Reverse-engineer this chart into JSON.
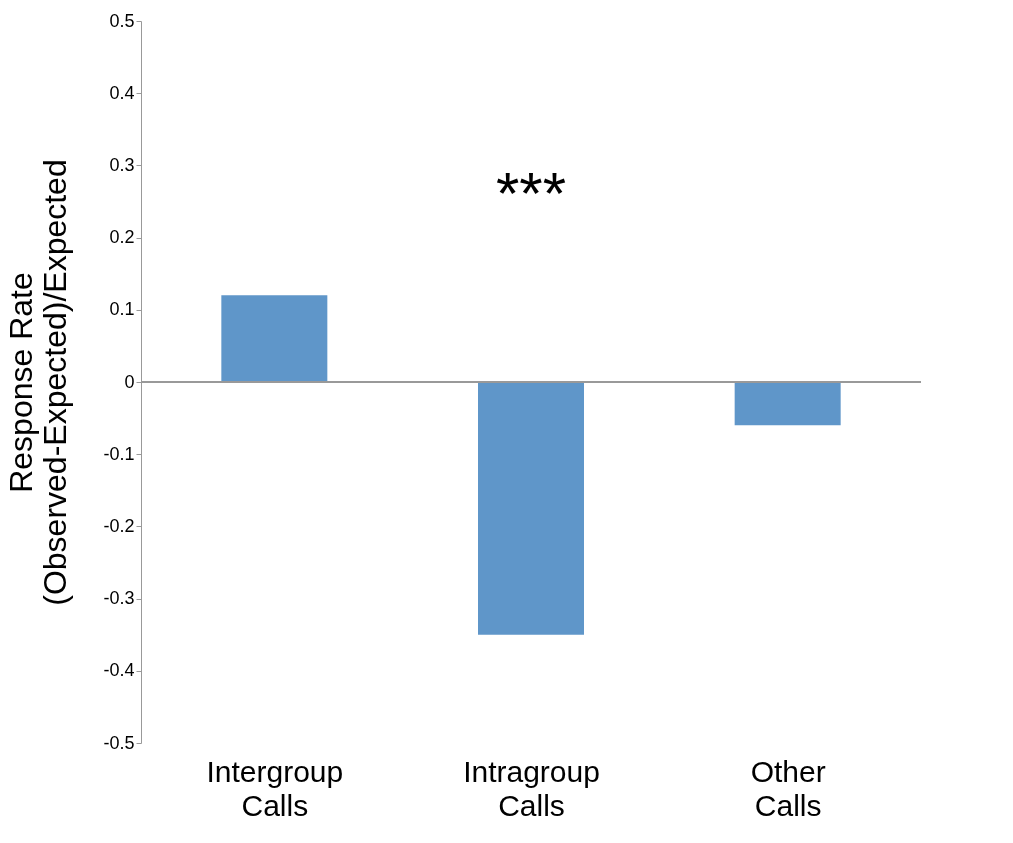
{
  "chart_data": {
    "type": "bar",
    "categories": [
      "Intergroup Calls",
      "Intragroup Calls",
      "Other Calls"
    ],
    "series": [
      {
        "color": "#5f96c9",
        "values": [
          0.12,
          -0.35,
          -0.06
        ]
      }
    ],
    "ylabel": "Response Rate\n(Observed-Expected)/Expected",
    "ylim": [
      -0.5,
      0.5
    ],
    "yticks": [
      -0.5,
      -0.4,
      -0.3,
      -0.2,
      -0.1,
      0,
      0.1,
      0.2,
      0.3,
      0.4,
      0.5
    ],
    "ref_lines": [
      {
        "axis": "y",
        "value": 0,
        "color": "#999999"
      }
    ],
    "annotations": [
      "***"
    ],
    "grid": false,
    "legend": false
  }
}
